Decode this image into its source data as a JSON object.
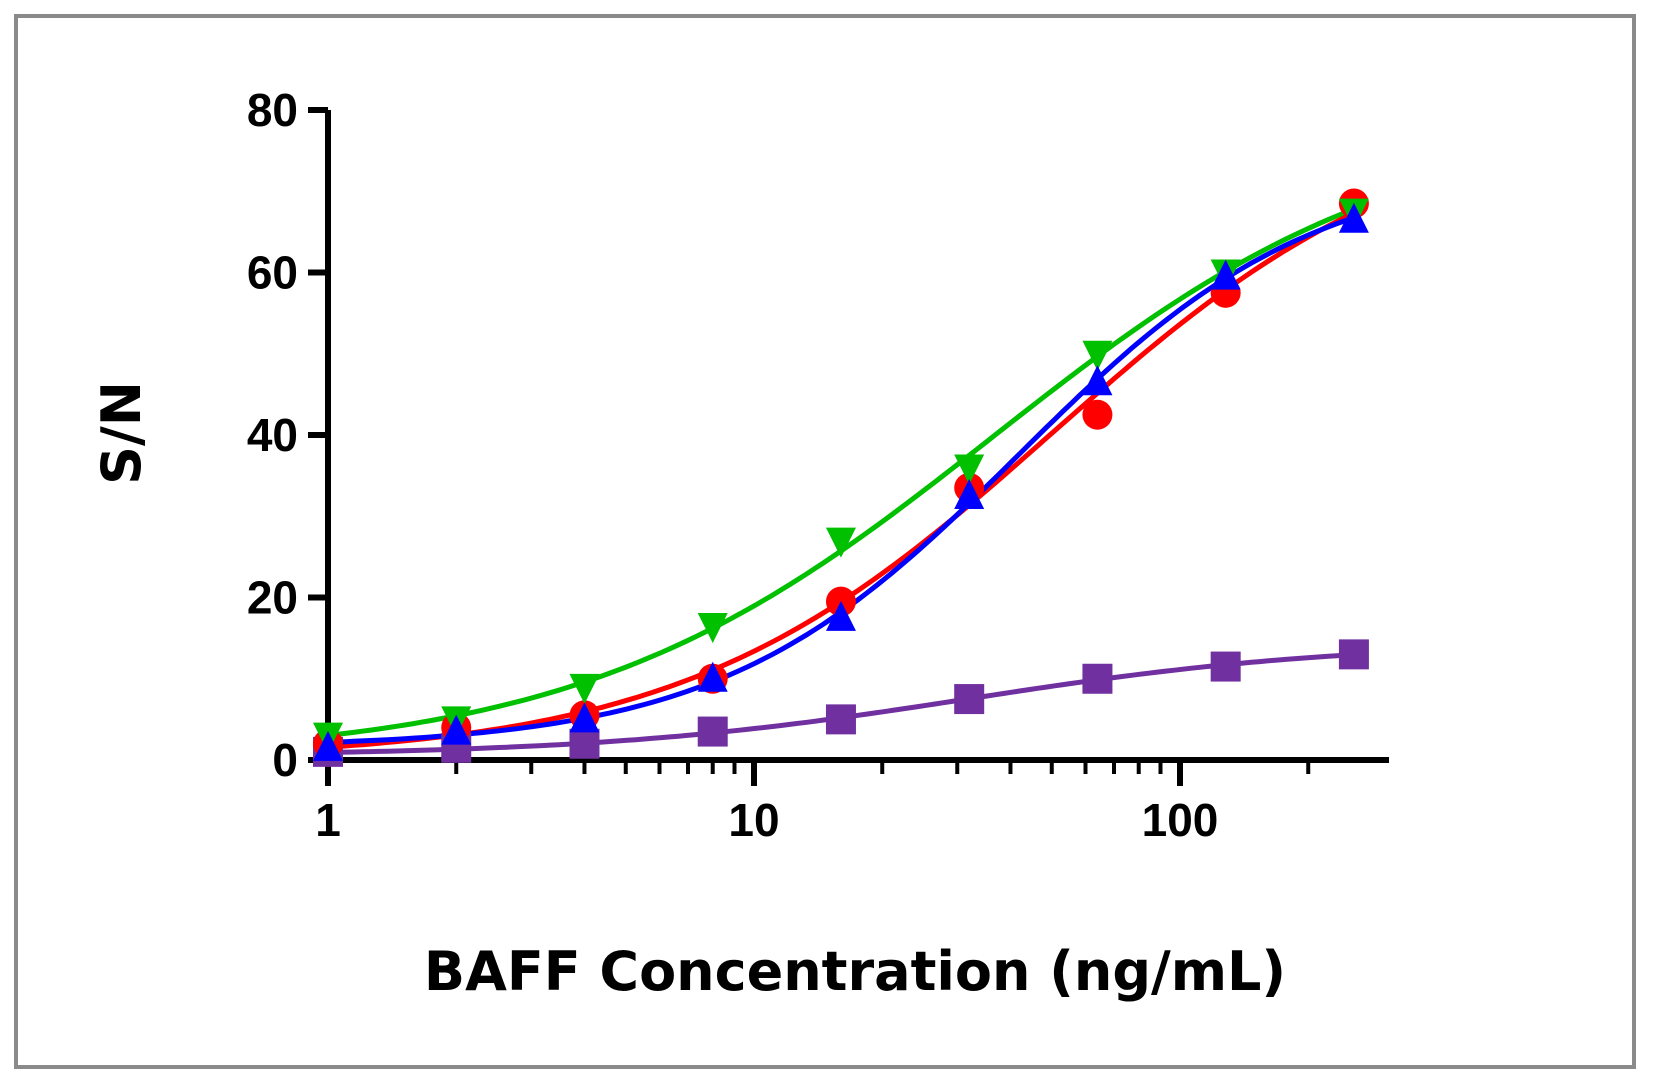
{
  "chart_data": {
    "type": "scatter",
    "title": "",
    "xlabel": "BAFF Concentration (ng/mL)",
    "ylabel": "S/N",
    "xscale": "log",
    "xlim": [
      1,
      256
    ],
    "ylim": [
      0,
      80
    ],
    "x_ticks": [
      1,
      10,
      100
    ],
    "x_tick_labels": [
      "1",
      "10",
      "100"
    ],
    "y_ticks": [
      0,
      20,
      40,
      60,
      80
    ],
    "y_tick_labels": [
      "0",
      "20",
      "40",
      "60",
      "80"
    ],
    "grid": false,
    "legend": "none",
    "x": [
      1,
      2,
      4,
      8,
      16,
      32,
      64,
      128,
      256
    ],
    "series": [
      {
        "name": "red",
        "color": "#ff0000",
        "marker": "circle",
        "values": [
          2,
          4,
          5.5,
          10,
          19.5,
          33.5,
          42.5,
          57.5,
          68.5
        ]
      },
      {
        "name": "blue",
        "color": "#0000ff",
        "marker": "triangle-up",
        "values": [
          1.5,
          3.5,
          5,
          10,
          17.5,
          32.5,
          46.5,
          59.5,
          66.5
        ]
      },
      {
        "name": "green",
        "color": "#00c000",
        "marker": "triangle-down",
        "values": [
          3,
          5,
          9,
          16.5,
          27,
          36,
          50,
          60,
          67.5
        ]
      },
      {
        "name": "purple",
        "color": "#7030a0",
        "marker": "square",
        "values": [
          1,
          1.5,
          2,
          3.5,
          5,
          7.5,
          10,
          11.5,
          13
        ]
      }
    ]
  }
}
